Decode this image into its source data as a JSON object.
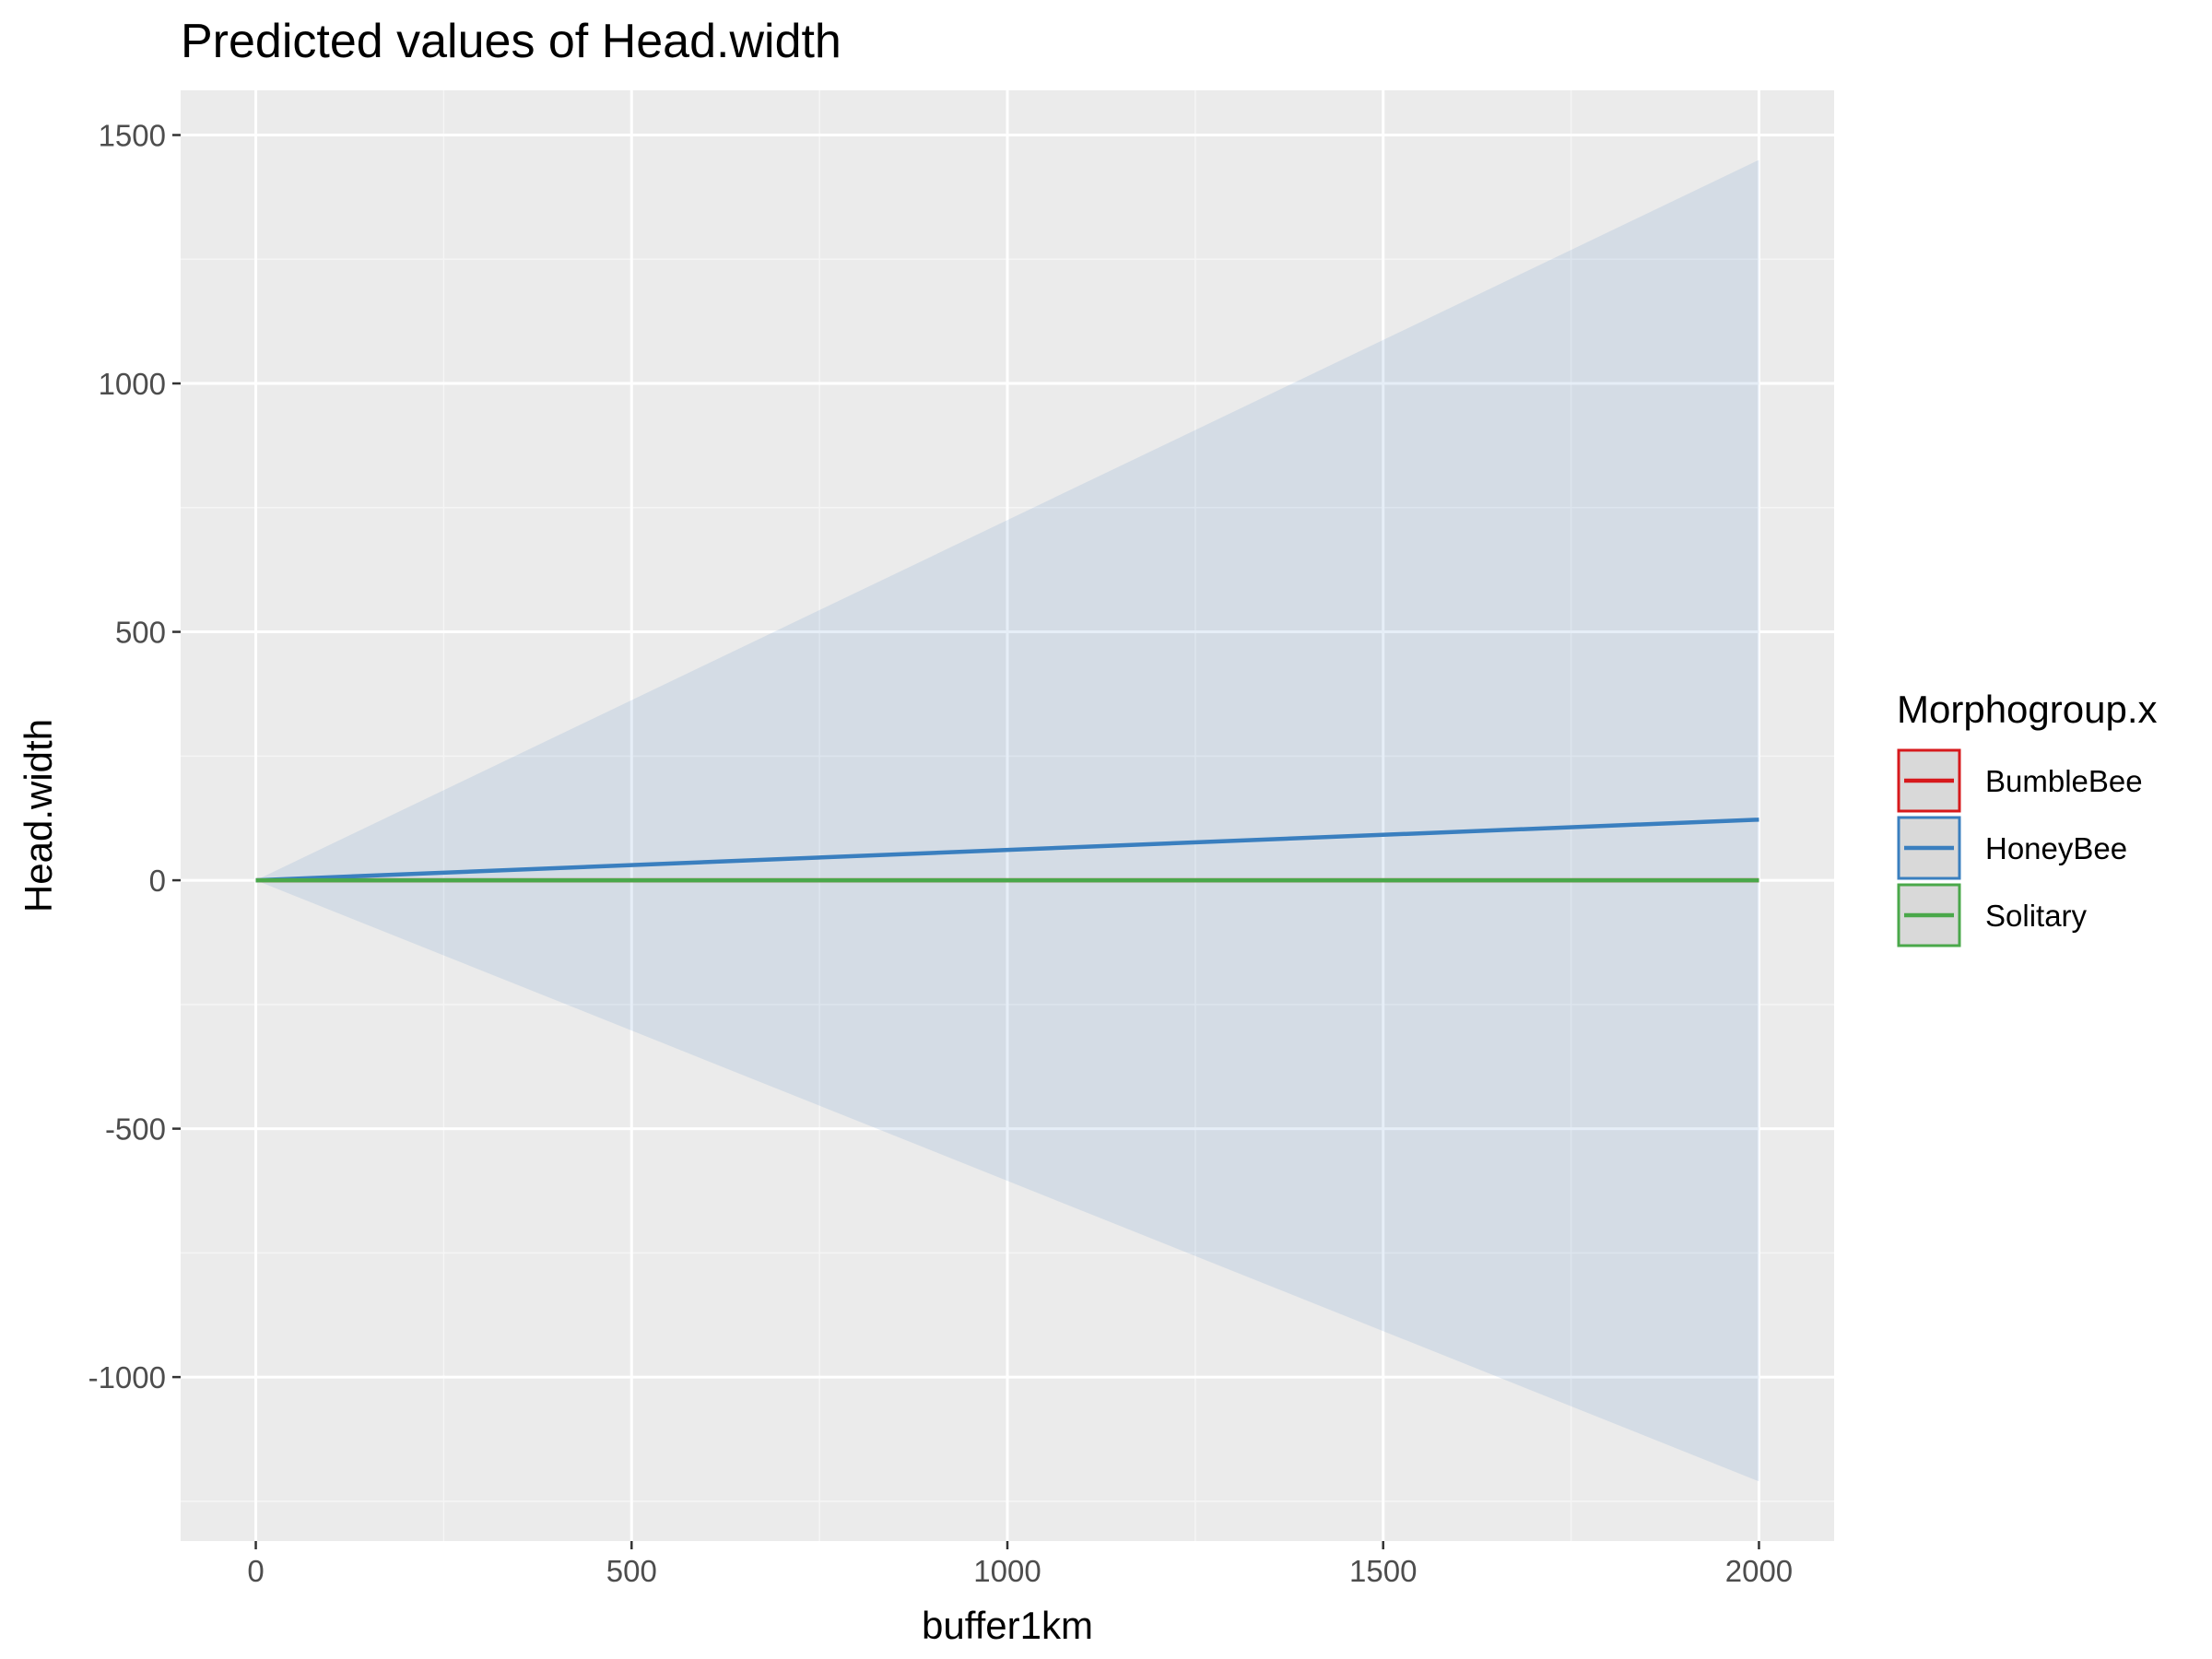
{
  "chart_data": {
    "type": "line",
    "title": "Predicted values of Head.width",
    "xlabel": "buffer1km",
    "ylabel": "Head.width",
    "xlim": [
      -100,
      2100
    ],
    "ylim": [
      -1330,
      1590
    ],
    "x_ticks": [
      0,
      500,
      1000,
      1500,
      2000
    ],
    "x_tick_labels": [
      "0",
      "500",
      "1000",
      "1500",
      "2000"
    ],
    "y_ticks": [
      -1000,
      -500,
      0,
      500,
      1000,
      1500
    ],
    "y_tick_labels": [
      "-1000",
      "-500",
      "0",
      "500",
      "1000",
      "1500"
    ],
    "grid": true,
    "legend": {
      "title": "Morphogroup.x",
      "position": "right",
      "entries": [
        {
          "label": "BumbleBee",
          "color": "#d7191c"
        },
        {
          "label": "HoneyBee",
          "color": "#3a7fbf"
        },
        {
          "label": "Solitary",
          "color": "#4aa84a"
        }
      ]
    },
    "series": [
      {
        "name": "BumbleBee",
        "color": "#d7191c",
        "x": [
          0,
          2000
        ],
        "y": [
          0,
          0
        ]
      },
      {
        "name": "HoneyBee",
        "color": "#3a7fbf",
        "x": [
          0,
          2000
        ],
        "y": [
          0,
          122
        ],
        "ci_lower": [
          0,
          -1210
        ],
        "ci_upper": [
          0,
          1450
        ]
      },
      {
        "name": "Solitary",
        "color": "#4aa84a",
        "x": [
          0,
          2000
        ],
        "y": [
          0,
          0
        ]
      }
    ]
  }
}
